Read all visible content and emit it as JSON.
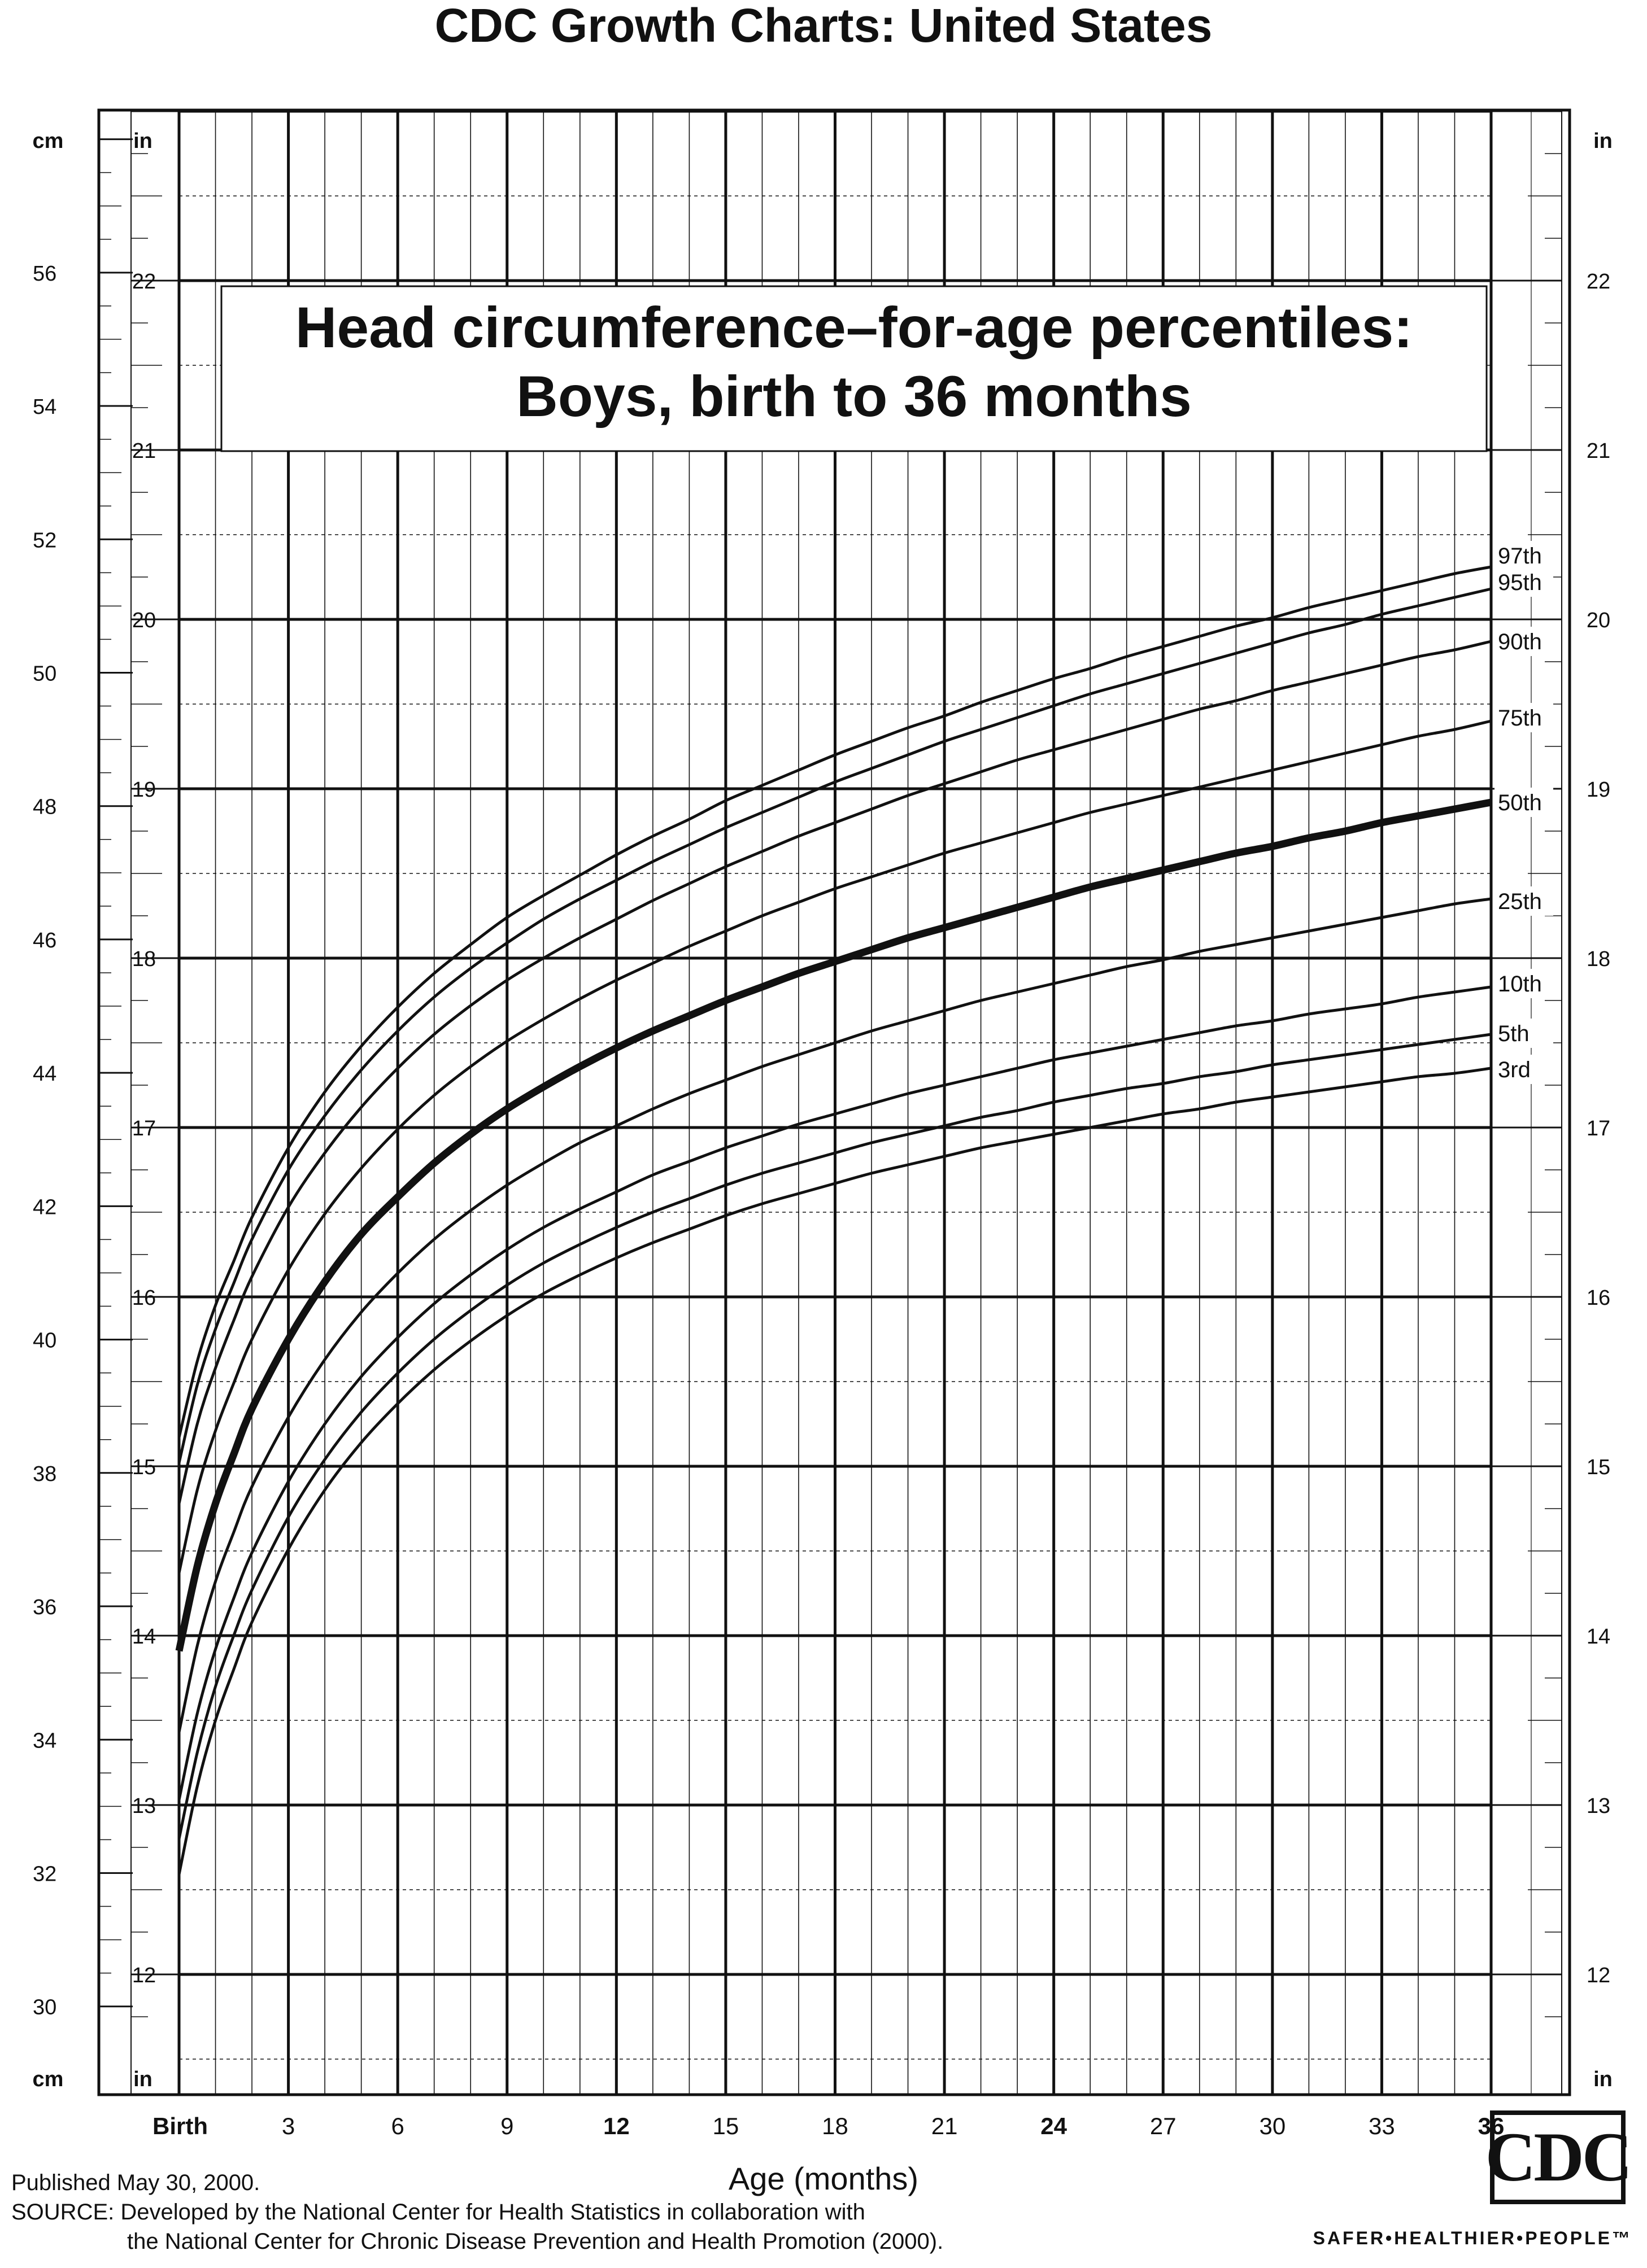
{
  "page": {
    "header_title": "CDC Growth Charts: United States",
    "footer_published": "Published May 30, 2000.",
    "footer_source_line1": "SOURCE: Developed by the National Center for Health Statistics in collaboration with",
    "footer_source_line2": "the National Center for Chronic Disease Prevention and Health Promotion (2000).",
    "logo_text": "CDC",
    "tagline": "SAFER•HEALTHIER•PEOPLE™"
  },
  "chart_data": {
    "type": "line",
    "title_line1": "Head circumference–for-age percentiles:",
    "title_line2": "Boys, birth to 36 months",
    "xlabel": "Age (months)",
    "x_unit_labels": {
      "left_top": "in",
      "left_bottom": "in",
      "right_top": "in",
      "right_bottom": "in",
      "cm_top": "cm",
      "cm_bottom": "cm"
    },
    "x_ticks": [
      {
        "value": 0,
        "label": "Birth",
        "bold": true
      },
      {
        "value": 3,
        "label": "3",
        "bold": false
      },
      {
        "value": 6,
        "label": "6",
        "bold": false
      },
      {
        "value": 9,
        "label": "9",
        "bold": false
      },
      {
        "value": 12,
        "label": "12",
        "bold": true
      },
      {
        "value": 15,
        "label": "15",
        "bold": false
      },
      {
        "value": 18,
        "label": "18",
        "bold": false
      },
      {
        "value": 21,
        "label": "21",
        "bold": false
      },
      {
        "value": 24,
        "label": "24",
        "bold": true
      },
      {
        "value": 27,
        "label": "27",
        "bold": false
      },
      {
        "value": 30,
        "label": "30",
        "bold": false
      },
      {
        "value": 33,
        "label": "33",
        "bold": false
      },
      {
        "value": 36,
        "label": "36",
        "bold": true
      }
    ],
    "xlim": [
      -0.5,
      38
    ],
    "ylim_in": [
      11.81,
      23.58
    ],
    "y_in_ticks": [
      "12",
      "13",
      "14",
      "15",
      "16",
      "17",
      "18",
      "19",
      "20",
      "21",
      "22"
    ],
    "y_cm_ticks": [
      "30",
      "32",
      "34",
      "36",
      "38",
      "40",
      "42",
      "44",
      "46",
      "48",
      "50",
      "52",
      "54",
      "56"
    ],
    "x": [
      0,
      0.5,
      1,
      1.5,
      2,
      3,
      4,
      5,
      6,
      7,
      8,
      9,
      10,
      11,
      12,
      13,
      14,
      15,
      16,
      17,
      18,
      19,
      20,
      21,
      22,
      23,
      24,
      25,
      26,
      27,
      28,
      29,
      30,
      31,
      32,
      33,
      34,
      35,
      36
    ],
    "series": [
      {
        "name": "97th",
        "bold": false,
        "values": [
          15.17,
          15.62,
          15.95,
          16.21,
          16.47,
          16.88,
          17.21,
          17.48,
          17.71,
          17.91,
          18.08,
          18.24,
          18.37,
          18.49,
          18.61,
          18.72,
          18.82,
          18.93,
          19.02,
          19.11,
          19.2,
          19.28,
          19.36,
          19.43,
          19.51,
          19.58,
          19.65,
          19.71,
          19.78,
          19.84,
          19.9,
          19.96,
          20.01,
          20.07,
          20.12,
          20.17,
          20.22,
          20.27,
          20.31
        ]
      },
      {
        "name": "95th",
        "bold": false,
        "values": [
          15.02,
          15.48,
          15.81,
          16.08,
          16.34,
          16.75,
          17.07,
          17.34,
          17.57,
          17.77,
          17.94,
          18.09,
          18.23,
          18.35,
          18.46,
          18.57,
          18.67,
          18.77,
          18.86,
          18.95,
          19.04,
          19.12,
          19.2,
          19.28,
          19.35,
          19.42,
          19.49,
          19.56,
          19.62,
          19.68,
          19.74,
          19.8,
          19.86,
          19.92,
          19.97,
          20.03,
          20.08,
          20.13,
          20.18
        ]
      },
      {
        "name": "90th",
        "bold": false,
        "values": [
          14.78,
          15.25,
          15.58,
          15.86,
          16.12,
          16.53,
          16.85,
          17.12,
          17.35,
          17.55,
          17.72,
          17.87,
          18.0,
          18.12,
          18.23,
          18.34,
          18.44,
          18.54,
          18.63,
          18.72,
          18.8,
          18.88,
          18.96,
          19.03,
          19.1,
          19.17,
          19.23,
          19.29,
          19.35,
          19.41,
          19.47,
          19.52,
          19.58,
          19.63,
          19.68,
          19.73,
          19.78,
          19.82,
          19.87
        ]
      },
      {
        "name": "75th",
        "bold": false,
        "values": [
          14.37,
          14.86,
          15.21,
          15.49,
          15.75,
          16.16,
          16.49,
          16.76,
          16.99,
          17.19,
          17.36,
          17.51,
          17.64,
          17.76,
          17.87,
          17.97,
          18.07,
          18.16,
          18.25,
          18.33,
          18.41,
          18.48,
          18.55,
          18.62,
          18.68,
          18.74,
          18.8,
          18.86,
          18.91,
          18.96,
          19.01,
          19.06,
          19.11,
          19.16,
          19.21,
          19.26,
          19.31,
          19.35,
          19.4
        ]
      },
      {
        "name": "50th",
        "bold": true,
        "values": [
          13.91,
          14.41,
          14.78,
          15.07,
          15.34,
          15.75,
          16.09,
          16.37,
          16.59,
          16.79,
          16.96,
          17.11,
          17.24,
          17.36,
          17.47,
          17.57,
          17.66,
          17.75,
          17.83,
          17.91,
          17.98,
          18.05,
          18.12,
          18.18,
          18.24,
          18.3,
          18.36,
          18.42,
          18.47,
          18.52,
          18.57,
          18.62,
          18.66,
          18.71,
          18.75,
          18.8,
          18.84,
          18.88,
          18.92
        ]
      },
      {
        "name": "25th",
        "bold": false,
        "values": [
          13.43,
          13.94,
          14.32,
          14.61,
          14.88,
          15.29,
          15.63,
          15.91,
          16.14,
          16.34,
          16.51,
          16.66,
          16.79,
          16.91,
          17.01,
          17.11,
          17.2,
          17.28,
          17.36,
          17.43,
          17.5,
          17.57,
          17.63,
          17.69,
          17.75,
          17.8,
          17.85,
          17.9,
          17.95,
          17.99,
          18.04,
          18.08,
          18.12,
          18.16,
          18.2,
          18.24,
          18.28,
          18.32,
          18.35
        ]
      },
      {
        "name": "10th",
        "bold": false,
        "values": [
          13.03,
          13.54,
          13.92,
          14.22,
          14.49,
          14.91,
          15.25,
          15.53,
          15.76,
          15.96,
          16.13,
          16.28,
          16.41,
          16.52,
          16.62,
          16.72,
          16.8,
          16.88,
          16.95,
          17.02,
          17.08,
          17.14,
          17.2,
          17.25,
          17.3,
          17.35,
          17.4,
          17.44,
          17.48,
          17.52,
          17.56,
          17.6,
          17.63,
          17.67,
          17.7,
          17.73,
          17.77,
          17.8,
          17.83
        ]
      },
      {
        "name": "5th",
        "bold": false,
        "values": [
          12.8,
          13.31,
          13.7,
          14.0,
          14.27,
          14.7,
          15.04,
          15.32,
          15.55,
          15.75,
          15.92,
          16.07,
          16.2,
          16.31,
          16.41,
          16.5,
          16.58,
          16.66,
          16.73,
          16.79,
          16.85,
          16.91,
          16.96,
          17.01,
          17.06,
          17.1,
          17.15,
          17.19,
          17.23,
          17.26,
          17.3,
          17.33,
          17.37,
          17.4,
          17.43,
          17.46,
          17.49,
          17.52,
          17.55
        ]
      },
      {
        "name": "3rd",
        "bold": false,
        "values": [
          12.59,
          13.11,
          13.5,
          13.8,
          14.08,
          14.51,
          14.86,
          15.14,
          15.37,
          15.57,
          15.74,
          15.89,
          16.02,
          16.13,
          16.23,
          16.32,
          16.4,
          16.48,
          16.55,
          16.61,
          16.67,
          16.73,
          16.78,
          16.83,
          16.88,
          16.92,
          16.96,
          17.0,
          17.04,
          17.08,
          17.11,
          17.15,
          17.18,
          17.21,
          17.24,
          17.27,
          17.3,
          17.32,
          17.35
        ]
      }
    ],
    "legend_placement": "right-end-of-lines",
    "grid": true,
    "colors": {
      "ink": "#111111",
      "background": "#ffffff"
    }
  }
}
